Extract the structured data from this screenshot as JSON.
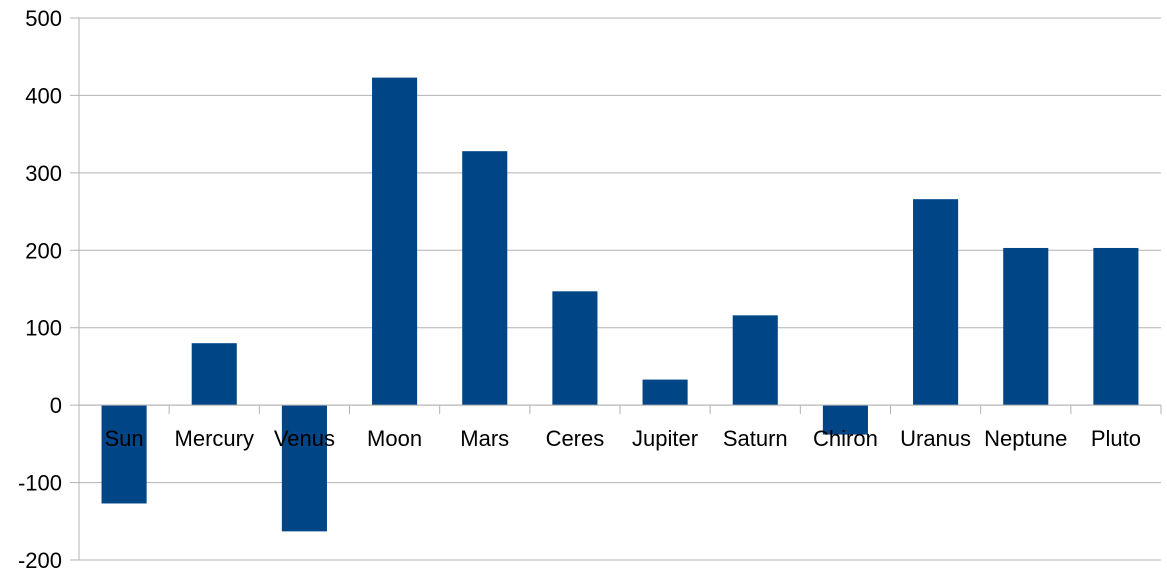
{
  "chart_data": {
    "type": "bar",
    "categories": [
      "Sun",
      "Mercury",
      "Venus",
      "Moon",
      "Mars",
      "Ceres",
      "Jupiter",
      "Saturn",
      "Chiron",
      "Uranus",
      "Neptune",
      "Pluto"
    ],
    "values": [
      -127,
      80,
      -163,
      423,
      328,
      147,
      33,
      116,
      -38,
      266,
      203,
      203
    ],
    "ylim": [
      -200,
      500
    ],
    "yticks": [
      -200,
      -100,
      0,
      100,
      200,
      300,
      400,
      500
    ],
    "grid": true,
    "legend": "none",
    "bar_color": "#004586",
    "grid_color": "#b3b3b3"
  }
}
